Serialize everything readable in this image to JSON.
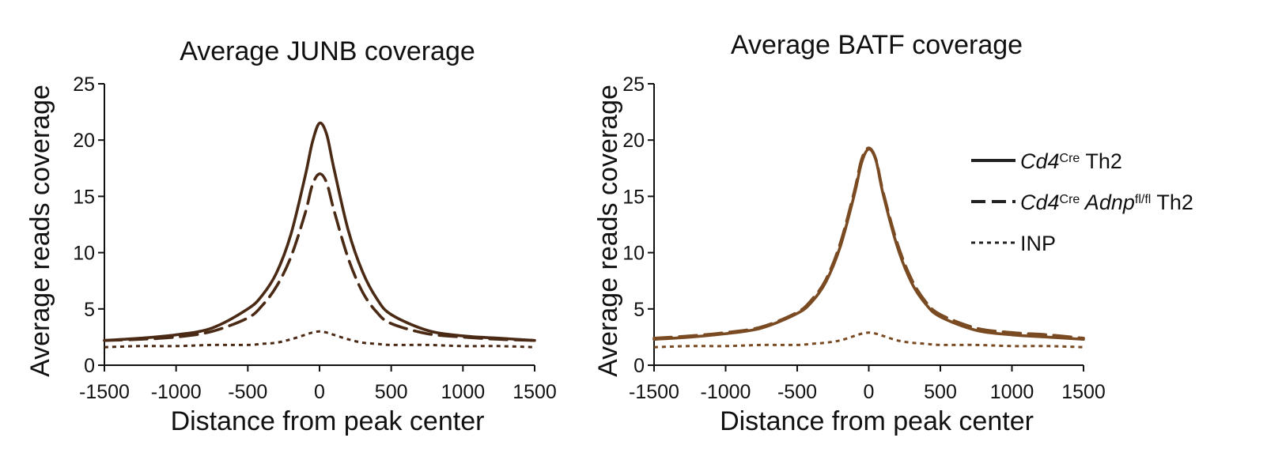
{
  "chart_data": [
    {
      "type": "line",
      "title": "Average JUNB coverage",
      "xlabel": "Distance from peak center",
      "ylabel": "Average reads coverage",
      "xlim": [
        -1500,
        1500
      ],
      "ylim": [
        0,
        25
      ],
      "xticks": [
        "-1500",
        "-1000",
        "-500",
        "0",
        "500",
        "1000",
        "1500"
      ],
      "yticks": [
        "0",
        "5",
        "10",
        "15",
        "20",
        "25"
      ],
      "color": "#4a2a14",
      "x": [
        -1500,
        -1250,
        -1000,
        -750,
        -500,
        -400,
        -300,
        -200,
        -100,
        -50,
        0,
        50,
        100,
        200,
        300,
        400,
        500,
        750,
        1000,
        1250,
        1500
      ],
      "series": [
        {
          "name": "Cd4Cre Th2",
          "style": "solid",
          "values": [
            2.2,
            2.4,
            2.7,
            3.3,
            5.0,
            6.2,
            8.2,
            11.6,
            16.8,
            19.8,
            21.5,
            20.5,
            17.5,
            12.0,
            8.3,
            5.9,
            4.5,
            3.1,
            2.6,
            2.4,
            2.2
          ]
        },
        {
          "name": "Cd4Cre Adnpfl/fl Th2",
          "style": "dashed",
          "values": [
            2.2,
            2.3,
            2.5,
            3.0,
            4.2,
            5.3,
            7.0,
            9.6,
            13.5,
            16.0,
            17.0,
            16.2,
            13.8,
            9.5,
            6.5,
            4.7,
            3.7,
            2.8,
            2.5,
            2.3,
            2.2
          ]
        },
        {
          "name": "INP",
          "style": "dotted",
          "values": [
            1.6,
            1.7,
            1.7,
            1.8,
            1.8,
            1.9,
            2.0,
            2.3,
            2.7,
            2.9,
            3.0,
            2.9,
            2.7,
            2.3,
            2.0,
            1.9,
            1.8,
            1.8,
            1.7,
            1.7,
            1.6
          ]
        }
      ]
    },
    {
      "type": "line",
      "title": "Average BATF coverage",
      "xlabel": "Distance from peak center",
      "ylabel": "Average reads coverage",
      "xlim": [
        -1500,
        1500
      ],
      "ylim": [
        0,
        25
      ],
      "xticks": [
        "-1500",
        "-1000",
        "-500",
        "0",
        "500",
        "1000",
        "1500"
      ],
      "yticks": [
        "0",
        "5",
        "10",
        "15",
        "20",
        "25"
      ],
      "color": "#7a4a22",
      "x": [
        -1500,
        -1250,
        -1000,
        -750,
        -500,
        -400,
        -300,
        -200,
        -100,
        -50,
        0,
        50,
        100,
        200,
        300,
        400,
        500,
        750,
        1000,
        1250,
        1500
      ],
      "series": [
        {
          "name": "Cd4Cre Th2",
          "style": "solid",
          "values": [
            2.3,
            2.5,
            2.8,
            3.3,
            4.6,
            5.6,
            7.4,
            10.5,
            15.2,
            18.0,
            19.2,
            18.2,
            15.2,
            10.5,
            7.3,
            5.4,
            4.3,
            3.1,
            2.7,
            2.5,
            2.3
          ]
        },
        {
          "name": "Cd4Cre Adnpfl/fl Th2",
          "style": "dashed",
          "values": [
            2.4,
            2.6,
            2.9,
            3.4,
            4.7,
            5.8,
            7.6,
            10.8,
            15.5,
            18.3,
            19.3,
            18.3,
            15.4,
            10.8,
            7.6,
            5.6,
            4.5,
            3.3,
            2.9,
            2.7,
            2.4
          ]
        },
        {
          "name": "INP",
          "style": "dotted",
          "values": [
            1.6,
            1.7,
            1.7,
            1.8,
            1.8,
            1.9,
            2.0,
            2.2,
            2.6,
            2.8,
            2.9,
            2.8,
            2.6,
            2.2,
            2.0,
            1.9,
            1.8,
            1.8,
            1.7,
            1.7,
            1.6
          ]
        }
      ]
    }
  ],
  "legend": {
    "placement": "right",
    "items": [
      {
        "style": "solid",
        "gene": "Cd4",
        "gene_sup": "Cre",
        "extra_gene": "",
        "extra_sup": "",
        "suffix": " Th2"
      },
      {
        "style": "dashed",
        "gene": "Cd4",
        "gene_sup": "Cre",
        "extra_gene": " Adnp",
        "extra_sup": "fl/fl",
        "suffix": " Th2"
      },
      {
        "style": "dotted",
        "gene": "",
        "gene_sup": "",
        "extra_gene": "",
        "extra_sup": "",
        "suffix": "INP"
      }
    ]
  }
}
